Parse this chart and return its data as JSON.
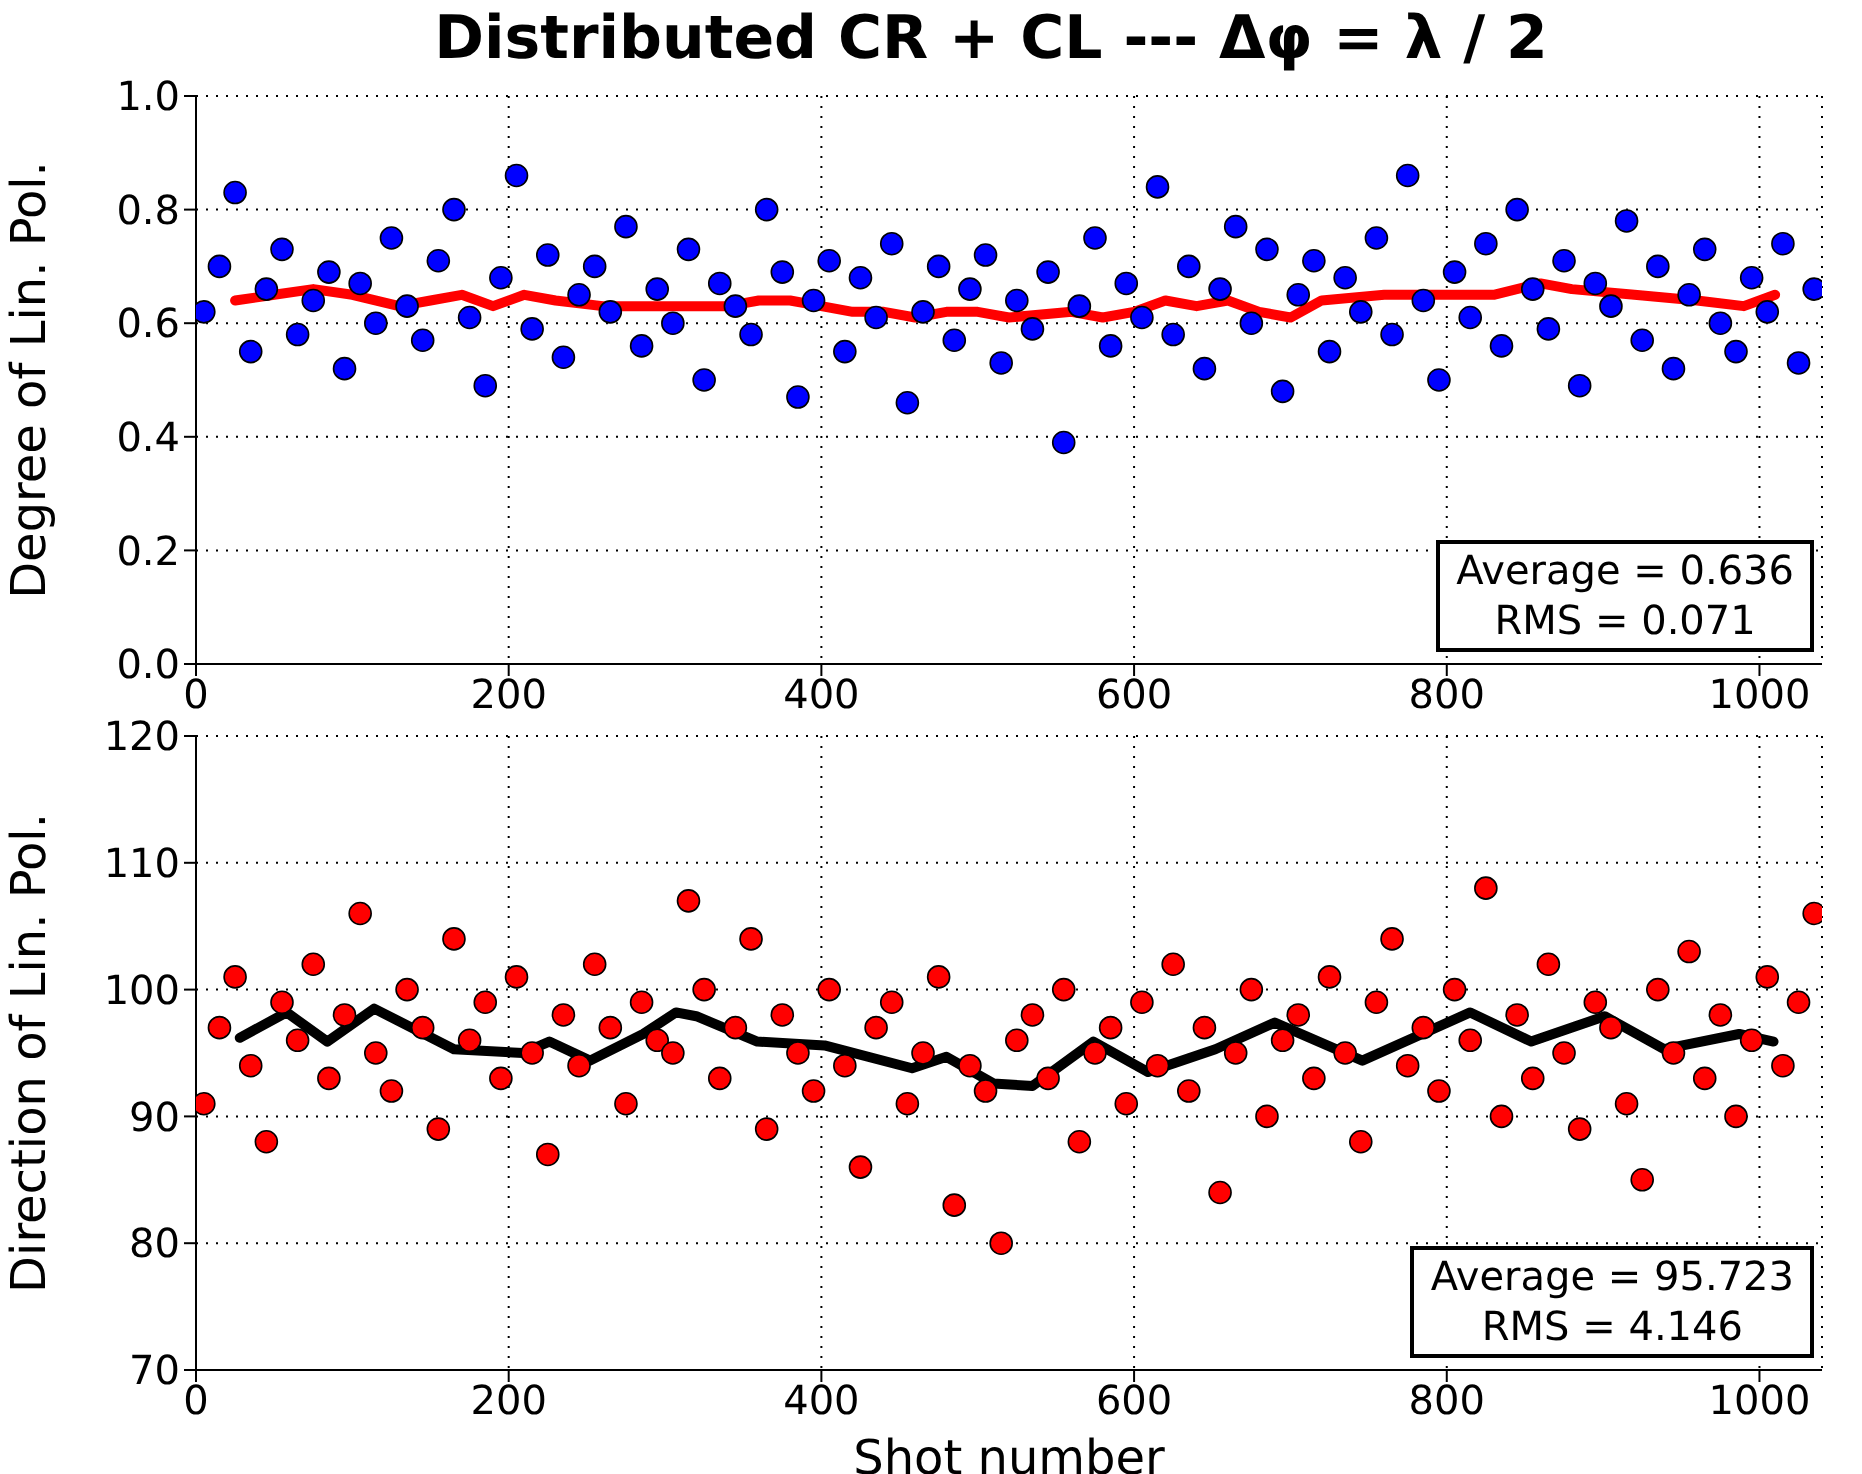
{
  "chart_data": [
    {
      "type": "scatter",
      "title": "Distributed CR + CL --- Δφ = λ / 2",
      "ylabel": "Degree of Lin. Pol.",
      "xlim": [
        0,
        1040
      ],
      "xticks": [
        0,
        200,
        400,
        600,
        800,
        1000
      ],
      "ylim": [
        0,
        1
      ],
      "yticks": [
        {
          "value": 0,
          "label": "0.0"
        },
        {
          "value": 0.2,
          "label": "0.2"
        },
        {
          "value": 0.4,
          "label": "0.4"
        },
        {
          "value": 0.6,
          "label": "0.6"
        },
        {
          "value": 0.8,
          "label": "0.8"
        },
        {
          "value": 1,
          "label": "1.0"
        }
      ],
      "grid": true,
      "annotations": [
        "Average = 0.636",
        "RMS = 0.071"
      ],
      "series": [
        {
          "type": "scatter",
          "marker": "circle",
          "color": "#0000ff",
          "x": [
            5,
            15,
            25,
            35,
            45,
            55,
            65,
            75,
            85,
            95,
            105,
            115,
            125,
            135,
            145,
            155,
            165,
            175,
            185,
            195,
            205,
            215,
            225,
            235,
            245,
            255,
            265,
            275,
            285,
            295,
            305,
            315,
            325,
            335,
            345,
            355,
            365,
            375,
            385,
            395,
            405,
            415,
            425,
            435,
            445,
            455,
            465,
            475,
            485,
            495,
            505,
            515,
            525,
            535,
            545,
            555,
            565,
            575,
            585,
            595,
            605,
            615,
            625,
            635,
            645,
            655,
            665,
            675,
            685,
            695,
            705,
            715,
            725,
            735,
            745,
            755,
            765,
            775,
            785,
            795,
            805,
            815,
            825,
            835,
            845,
            855,
            865,
            875,
            885,
            895,
            905,
            915,
            925,
            935,
            945,
            955,
            965,
            975,
            985,
            995,
            1005,
            1015,
            1025,
            1035
          ],
          "values": [
            0.62,
            0.7,
            0.83,
            0.55,
            0.66,
            0.73,
            0.58,
            0.64,
            0.69,
            0.52,
            0.67,
            0.6,
            0.75,
            0.63,
            0.57,
            0.71,
            0.8,
            0.61,
            0.49,
            0.68,
            0.86,
            0.59,
            0.72,
            0.54,
            0.65,
            0.7,
            0.62,
            0.77,
            0.56,
            0.66,
            0.6,
            0.73,
            0.5,
            0.67,
            0.63,
            0.58,
            0.8,
            0.69,
            0.47,
            0.64,
            0.71,
            0.55,
            0.68,
            0.61,
            0.74,
            0.46,
            0.62,
            0.7,
            0.57,
            0.66,
            0.72,
            0.53,
            0.64,
            0.59,
            0.69,
            0.39,
            0.63,
            0.75,
            0.56,
            0.67,
            0.61,
            0.84,
            0.58,
            0.7,
            0.52,
            0.66,
            0.77,
            0.6,
            0.73,
            0.48,
            0.65,
            0.71,
            0.55,
            0.68,
            0.62,
            0.75,
            0.58,
            0.86,
            0.64,
            0.5,
            0.69,
            0.61,
            0.74,
            0.56,
            0.8,
            0.66,
            0.59,
            0.71,
            0.49,
            0.67,
            0.63,
            0.78,
            0.57,
            0.7,
            0.52,
            0.65,
            0.73,
            0.6,
            0.55,
            0.68,
            0.62,
            0.74,
            0.53,
            0.66
          ]
        },
        {
          "type": "line",
          "marker": "none",
          "color": "#ff0000",
          "x": [
            25,
            50,
            75,
            100,
            130,
            150,
            170,
            190,
            210,
            230,
            260,
            300,
            340,
            360,
            380,
            400,
            420,
            440,
            460,
            480,
            500,
            520,
            560,
            580,
            600,
            620,
            640,
            660,
            680,
            700,
            720,
            760,
            800,
            830,
            860,
            880,
            920,
            960,
            990,
            1010
          ],
          "values": [
            0.64,
            0.65,
            0.66,
            0.65,
            0.63,
            0.64,
            0.65,
            0.63,
            0.65,
            0.64,
            0.63,
            0.63,
            0.63,
            0.64,
            0.64,
            0.63,
            0.62,
            0.62,
            0.61,
            0.62,
            0.62,
            0.61,
            0.62,
            0.61,
            0.62,
            0.64,
            0.63,
            0.64,
            0.62,
            0.61,
            0.64,
            0.65,
            0.65,
            0.65,
            0.67,
            0.66,
            0.65,
            0.64,
            0.63,
            0.65
          ]
        }
      ]
    },
    {
      "type": "scatter",
      "xlabel": "Shot number",
      "ylabel": "Direction of Lin. Pol.",
      "xlim": [
        0,
        1040
      ],
      "xticks": [
        0,
        200,
        400,
        600,
        800,
        1000
      ],
      "ylim": [
        70,
        120
      ],
      "yticks": [
        70,
        80,
        90,
        100,
        110,
        120
      ],
      "grid": true,
      "annotations": [
        "Average = 95.723",
        "RMS = 4.146"
      ],
      "series": [
        {
          "type": "scatter",
          "marker": "circle",
          "color": "#ff0000",
          "x": [
            5,
            15,
            25,
            35,
            45,
            55,
            65,
            75,
            85,
            95,
            105,
            115,
            125,
            135,
            145,
            155,
            165,
            175,
            185,
            195,
            205,
            215,
            225,
            235,
            245,
            255,
            265,
            275,
            285,
            295,
            305,
            315,
            325,
            335,
            345,
            355,
            365,
            375,
            385,
            395,
            405,
            415,
            425,
            435,
            445,
            455,
            465,
            475,
            485,
            495,
            505,
            515,
            525,
            535,
            545,
            555,
            565,
            575,
            585,
            595,
            605,
            615,
            625,
            635,
            645,
            655,
            665,
            675,
            685,
            695,
            705,
            715,
            725,
            735,
            745,
            755,
            765,
            775,
            785,
            795,
            805,
            815,
            825,
            835,
            845,
            855,
            865,
            875,
            885,
            895,
            905,
            915,
            925,
            935,
            945,
            955,
            965,
            975,
            985,
            995,
            1005,
            1015,
            1025,
            1035
          ],
          "values": [
            91,
            97,
            101,
            94,
            88,
            99,
            96,
            102,
            93,
            98,
            106,
            95,
            92,
            100,
            97,
            89,
            104,
            96,
            99,
            93,
            101,
            95,
            87,
            98,
            94,
            102,
            97,
            91,
            99,
            96,
            95,
            107,
            100,
            93,
            97,
            104,
            89,
            98,
            95,
            92,
            100,
            94,
            86,
            97,
            99,
            91,
            95,
            101,
            83,
            94,
            92,
            80,
            96,
            98,
            93,
            100,
            88,
            95,
            97,
            91,
            99,
            94,
            102,
            92,
            97,
            84,
            95,
            100,
            90,
            96,
            98,
            93,
            101,
            95,
            88,
            99,
            104,
            94,
            97,
            92,
            100,
            96,
            108,
            90,
            98,
            93,
            102,
            95,
            89,
            99,
            97,
            91,
            85,
            100,
            95,
            103,
            93,
            98,
            90,
            96,
            101,
            94,
            99,
            106
          ]
        },
        {
          "type": "line",
          "marker": "none",
          "color": "#000000",
          "x": [
            28,
            58,
            84,
            114,
            165,
            209,
            226,
            252,
            286,
            307,
            320,
            359,
            402,
            458,
            480,
            510,
            535,
            574,
            609,
            652,
            690,
            746,
            815,
            854,
            901,
            939,
            987,
            1009
          ],
          "values": [
            96.2,
            98.2,
            95.9,
            98.5,
            95.3,
            95.0,
            95.9,
            94.4,
            96.5,
            98.2,
            97.9,
            95.9,
            95.6,
            93.8,
            94.7,
            92.6,
            92.4,
            95.9,
            93.5,
            95.3,
            97.4,
            94.4,
            98.2,
            95.9,
            97.9,
            95.3,
            96.5,
            95.9
          ]
        }
      ]
    }
  ]
}
